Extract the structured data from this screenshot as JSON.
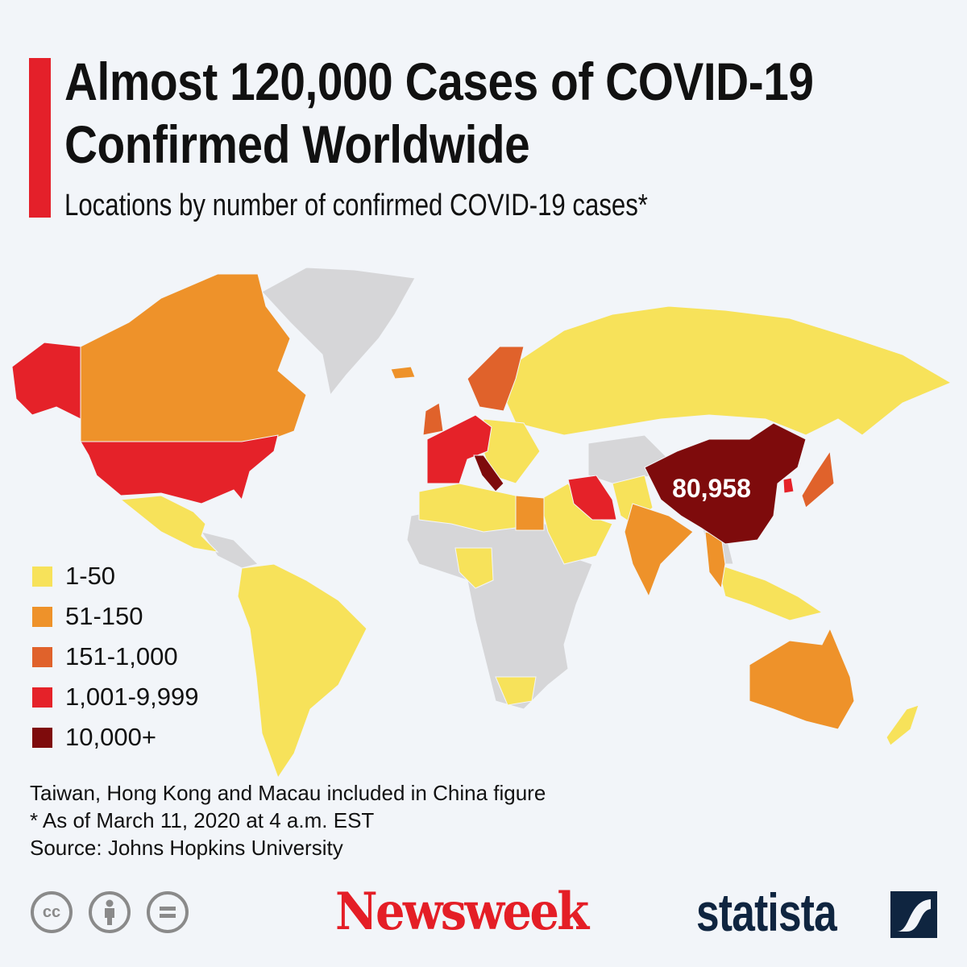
{
  "header": {
    "title_line1": "Almost 120,000 Cases of COVID-19",
    "title_line2": "Confirmed Worldwide",
    "subtitle": "Locations by number of confirmed COVID-19 cases*",
    "accent_color": "#e4202a"
  },
  "map": {
    "callout_label": "80,958",
    "no_data_color": "#d6d6d8",
    "legend": [
      {
        "label": "1-50",
        "color": "#f7e25a"
      },
      {
        "label": "51-150",
        "color": "#ee922a"
      },
      {
        "label": "151-1,000",
        "color": "#e0622b"
      },
      {
        "label": "1,001-9,999",
        "color": "#e52229"
      },
      {
        "label": "10,000+",
        "color": "#7e0b0c"
      }
    ]
  },
  "notes": {
    "line1": "Taiwan, Hong Kong and Macau included in China figure",
    "line2": "* As of March 11, 2020 at 4 a.m. EST",
    "line3": "Source: Johns Hopkins University"
  },
  "footer": {
    "cc_icons": [
      "cc-icon",
      "attribution-icon",
      "no-derivatives-icon"
    ],
    "cc_text": "cc",
    "brand1": "Newsweek",
    "brand2": "statista"
  }
}
